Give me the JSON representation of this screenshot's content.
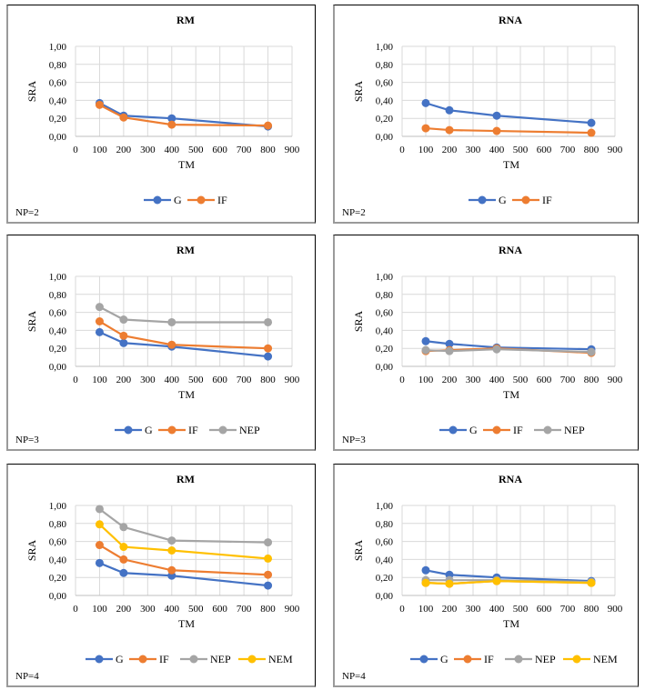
{
  "colors": {
    "G": "#4472c4",
    "IF": "#ed7d31",
    "NEP": "#a5a5a5",
    "NEM": "#ffc000",
    "grid": "#d9d9d9",
    "axis": "#bfbfbf"
  },
  "chart_data": [
    {
      "type": "line",
      "panel": "np2-rm",
      "title": "RM",
      "xlabel": "TM",
      "ylabel": "SRA",
      "note": "NP=2",
      "xlim": [
        0,
        900
      ],
      "ylim": [
        0,
        1
      ],
      "xticks": [
        "0",
        "100",
        "200",
        "300",
        "400",
        "500",
        "600",
        "700",
        "800",
        "900"
      ],
      "yticks": [
        "0,00",
        "0,20",
        "0,40",
        "0,60",
        "0,80",
        "1,00"
      ],
      "grid": true,
      "legend": "bottom",
      "x": [
        100,
        200,
        400,
        800
      ],
      "series": [
        {
          "name": "G",
          "values": [
            0.37,
            0.23,
            0.2,
            0.11
          ]
        },
        {
          "name": "IF",
          "values": [
            0.35,
            0.21,
            0.13,
            0.12
          ]
        }
      ]
    },
    {
      "type": "line",
      "panel": "np2-rna",
      "title": "RNA",
      "xlabel": "TM",
      "ylabel": "SRA",
      "note": "NP=2",
      "xlim": [
        0,
        900
      ],
      "ylim": [
        0,
        1
      ],
      "xticks": [
        "0",
        "100",
        "200",
        "300",
        "400",
        "500",
        "600",
        "700",
        "800",
        "900"
      ],
      "yticks": [
        "0,00",
        "0,20",
        "0,40",
        "0,60",
        "0,80",
        "1,00"
      ],
      "grid": true,
      "legend": "bottom",
      "x": [
        100,
        200,
        400,
        800
      ],
      "series": [
        {
          "name": "G",
          "values": [
            0.37,
            0.29,
            0.23,
            0.15
          ]
        },
        {
          "name": "IF",
          "values": [
            0.09,
            0.07,
            0.06,
            0.04
          ]
        }
      ]
    },
    {
      "type": "line",
      "panel": "np3-rm",
      "title": "RM",
      "xlabel": "TM",
      "ylabel": "SRA",
      "note": "NP=3",
      "xlim": [
        0,
        900
      ],
      "ylim": [
        0,
        1
      ],
      "xticks": [
        "0",
        "100",
        "200",
        "300",
        "400",
        "500",
        "600",
        "700",
        "800",
        "900"
      ],
      "yticks": [
        "0,00",
        "0,20",
        "0,40",
        "0,60",
        "0,80",
        "1,00"
      ],
      "grid": true,
      "legend": "bottom",
      "x": [
        100,
        200,
        400,
        800
      ],
      "series": [
        {
          "name": "G",
          "values": [
            0.38,
            0.26,
            0.22,
            0.11
          ]
        },
        {
          "name": "IF",
          "values": [
            0.5,
            0.34,
            0.24,
            0.2
          ]
        },
        {
          "name": "NEP",
          "values": [
            0.66,
            0.52,
            0.49,
            0.49
          ]
        }
      ]
    },
    {
      "type": "line",
      "panel": "np3-rna",
      "title": "RNA",
      "xlabel": "TM",
      "ylabel": "SRA",
      "note": "NP=3",
      "xlim": [
        0,
        900
      ],
      "ylim": [
        0,
        1
      ],
      "xticks": [
        "0",
        "100",
        "200",
        "300",
        "400",
        "500",
        "600",
        "700",
        "800",
        "900"
      ],
      "yticks": [
        "0,00",
        "0,20",
        "0,40",
        "0,60",
        "0,80",
        "1,00"
      ],
      "grid": true,
      "legend": "bottom",
      "x": [
        100,
        200,
        400,
        800
      ],
      "series": [
        {
          "name": "G",
          "values": [
            0.28,
            0.25,
            0.21,
            0.19
          ]
        },
        {
          "name": "IF",
          "values": [
            0.17,
            0.18,
            0.2,
            0.15
          ]
        },
        {
          "name": "NEP",
          "values": [
            0.18,
            0.17,
            0.19,
            0.16
          ]
        }
      ]
    },
    {
      "type": "line",
      "panel": "np4-rm",
      "title": "RM",
      "xlabel": "TM",
      "ylabel": "SRA",
      "note": "NP=4",
      "xlim": [
        0,
        900
      ],
      "ylim": [
        0,
        1
      ],
      "xticks": [
        "0",
        "100",
        "200",
        "300",
        "400",
        "500",
        "600",
        "700",
        "800",
        "900"
      ],
      "yticks": [
        "0,00",
        "0,20",
        "0,40",
        "0,60",
        "0,80",
        "1,00"
      ],
      "grid": true,
      "legend": "bottom",
      "x": [
        100,
        200,
        400,
        800
      ],
      "series": [
        {
          "name": "G",
          "values": [
            0.36,
            0.25,
            0.22,
            0.11
          ]
        },
        {
          "name": "IF",
          "values": [
            0.56,
            0.4,
            0.28,
            0.23
          ]
        },
        {
          "name": "NEP",
          "values": [
            0.96,
            0.76,
            0.61,
            0.59
          ]
        },
        {
          "name": "NEM",
          "values": [
            0.79,
            0.54,
            0.5,
            0.41
          ]
        }
      ]
    },
    {
      "type": "line",
      "panel": "np4-rna",
      "title": "RNA",
      "xlabel": "TM",
      "ylabel": "SRA",
      "note": "NP=4",
      "xlim": [
        0,
        900
      ],
      "ylim": [
        0,
        1
      ],
      "xticks": [
        "0",
        "100",
        "200",
        "300",
        "400",
        "500",
        "600",
        "700",
        "800",
        "900"
      ],
      "yticks": [
        "0,00",
        "0,20",
        "0,40",
        "0,60",
        "0,80",
        "1,00"
      ],
      "grid": true,
      "legend": "bottom",
      "x": [
        100,
        200,
        400,
        800
      ],
      "series": [
        {
          "name": "G",
          "values": [
            0.28,
            0.23,
            0.2,
            0.16
          ]
        },
        {
          "name": "IF",
          "values": [
            0.14,
            0.13,
            0.16,
            0.14
          ]
        },
        {
          "name": "NEP",
          "values": [
            0.17,
            0.17,
            0.17,
            0.15
          ]
        },
        {
          "name": "NEM",
          "values": [
            0.14,
            0.13,
            0.16,
            0.14
          ]
        }
      ]
    }
  ]
}
